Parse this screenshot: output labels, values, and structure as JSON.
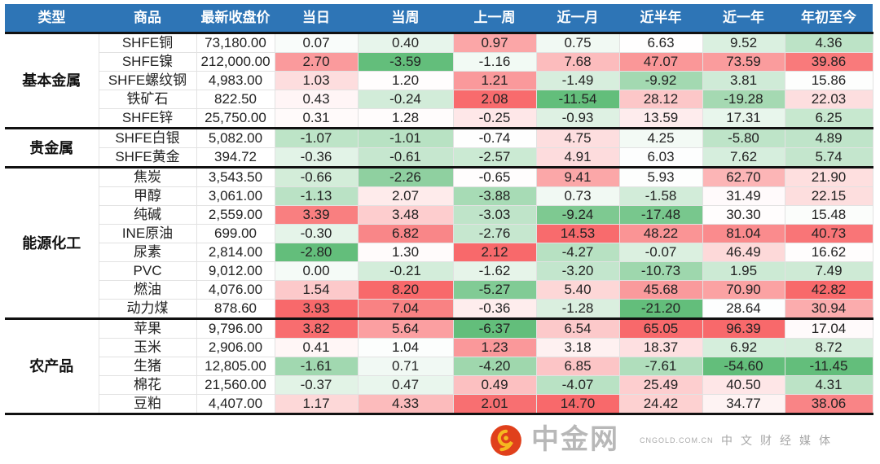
{
  "chart_data": {
    "type": "heatmap",
    "columns": [
      "类型",
      "商品",
      "最新收盘价",
      "当日",
      "当周",
      "上一周",
      "近一月",
      "近半年",
      "近一年",
      "年初至今"
    ],
    "color_scale": {
      "min": "#63BE7B",
      "mid": "#FFFFFF",
      "max": "#F8696B",
      "mode": "per-column"
    },
    "groups": [
      {
        "category": "基本金属",
        "rows": [
          {
            "name": "SHFE铜",
            "price": "73,180.00",
            "values": [
              "0.07",
              "0.40",
              "0.97",
              "0.75",
              "6.63",
              "9.52",
              "4.36"
            ]
          },
          {
            "name": "SHFE镍",
            "price": "212,000.00",
            "values": [
              "2.70",
              "-3.59",
              "-1.16",
              "7.68",
              "47.07",
              "73.59",
              "39.86"
            ]
          },
          {
            "name": "SHFE螺纹钢",
            "price": "4,983.00",
            "values": [
              "1.03",
              "1.20",
              "1.21",
              "-1.49",
              "-9.92",
              "3.81",
              "15.86"
            ]
          },
          {
            "name": "铁矿石",
            "price": "822.50",
            "values": [
              "0.43",
              "-0.24",
              "2.08",
              "-11.54",
              "28.12",
              "-19.28",
              "22.03"
            ]
          },
          {
            "name": "SHFE锌",
            "price": "25,750.00",
            "values": [
              "0.31",
              "1.28",
              "-0.25",
              "-0.93",
              "13.59",
              "17.31",
              "6.25"
            ]
          }
        ]
      },
      {
        "category": "贵金属",
        "rows": [
          {
            "name": "SHFE白银",
            "price": "5,082.00",
            "values": [
              "-1.07",
              "-1.01",
              "-0.74",
              "4.75",
              "4.25",
              "-5.80",
              "4.89"
            ]
          },
          {
            "name": "SHFE黄金",
            "price": "394.72",
            "values": [
              "-0.36",
              "-0.61",
              "-2.57",
              "4.91",
              "6.03",
              "7.62",
              "5.74"
            ]
          }
        ]
      },
      {
        "category": "能源化工",
        "rows": [
          {
            "name": "焦炭",
            "price": "3,543.50",
            "values": [
              "-0.66",
              "-2.26",
              "-0.65",
              "9.41",
              "5.93",
              "62.70",
              "21.90"
            ]
          },
          {
            "name": "甲醇",
            "price": "3,061.00",
            "values": [
              "-1.13",
              "2.07",
              "-3.88",
              "0.73",
              "-1.58",
              "31.49",
              "22.15"
            ]
          },
          {
            "name": "纯碱",
            "price": "2,559.00",
            "values": [
              "3.39",
              "3.48",
              "-3.03",
              "-9.24",
              "-17.48",
              "30.30",
              "15.48"
            ]
          },
          {
            "name": "INE原油",
            "price": "699.00",
            "values": [
              "-0.30",
              "6.82",
              "-2.76",
              "14.53",
              "48.22",
              "81.04",
              "40.73"
            ]
          },
          {
            "name": "尿素",
            "price": "2,814.00",
            "values": [
              "-2.80",
              "1.30",
              "2.12",
              "-4.27",
              "-0.07",
              "46.49",
              "16.62"
            ]
          },
          {
            "name": "PVC",
            "price": "9,012.00",
            "values": [
              "0.00",
              "-0.21",
              "-1.62",
              "-3.20",
              "-10.73",
              "1.95",
              "7.49"
            ]
          },
          {
            "name": "燃油",
            "price": "4,076.00",
            "values": [
              "1.54",
              "8.20",
              "-5.27",
              "5.40",
              "45.68",
              "70.90",
              "42.82"
            ]
          },
          {
            "name": "动力煤",
            "price": "878.60",
            "values": [
              "3.93",
              "7.04",
              "-0.36",
              "-1.28",
              "-21.20",
              "28.64",
              "30.94"
            ]
          }
        ]
      },
      {
        "category": "农产品",
        "rows": [
          {
            "name": "苹果",
            "price": "9,796.00",
            "values": [
              "3.82",
              "5.64",
              "-6.37",
              "6.54",
              "65.05",
              "96.39",
              "17.04"
            ]
          },
          {
            "name": "玉米",
            "price": "2,906.00",
            "values": [
              "0.41",
              "1.04",
              "1.23",
              "3.18",
              "18.37",
              "6.92",
              "8.72"
            ]
          },
          {
            "name": "生猪",
            "price": "12,805.00",
            "values": [
              "-1.61",
              "0.71",
              "-4.20",
              "6.85",
              "-7.61",
              "-54.60",
              "-11.45"
            ]
          },
          {
            "name": "棉花",
            "price": "21,560.00",
            "values": [
              "-0.37",
              "0.47",
              "0.49",
              "-4.07",
              "25.49",
              "40.50",
              "4.31"
            ]
          },
          {
            "name": "豆粕",
            "price": "4,407.00",
            "values": [
              "1.17",
              "4.33",
              "2.01",
              "14.70",
              "24.42",
              "34.77",
              "38.06"
            ]
          }
        ]
      }
    ]
  },
  "watermark": {
    "logo_text": "中金网",
    "domain": "CNGOLD.COM.CN",
    "tagline": "中文财经媒体"
  }
}
